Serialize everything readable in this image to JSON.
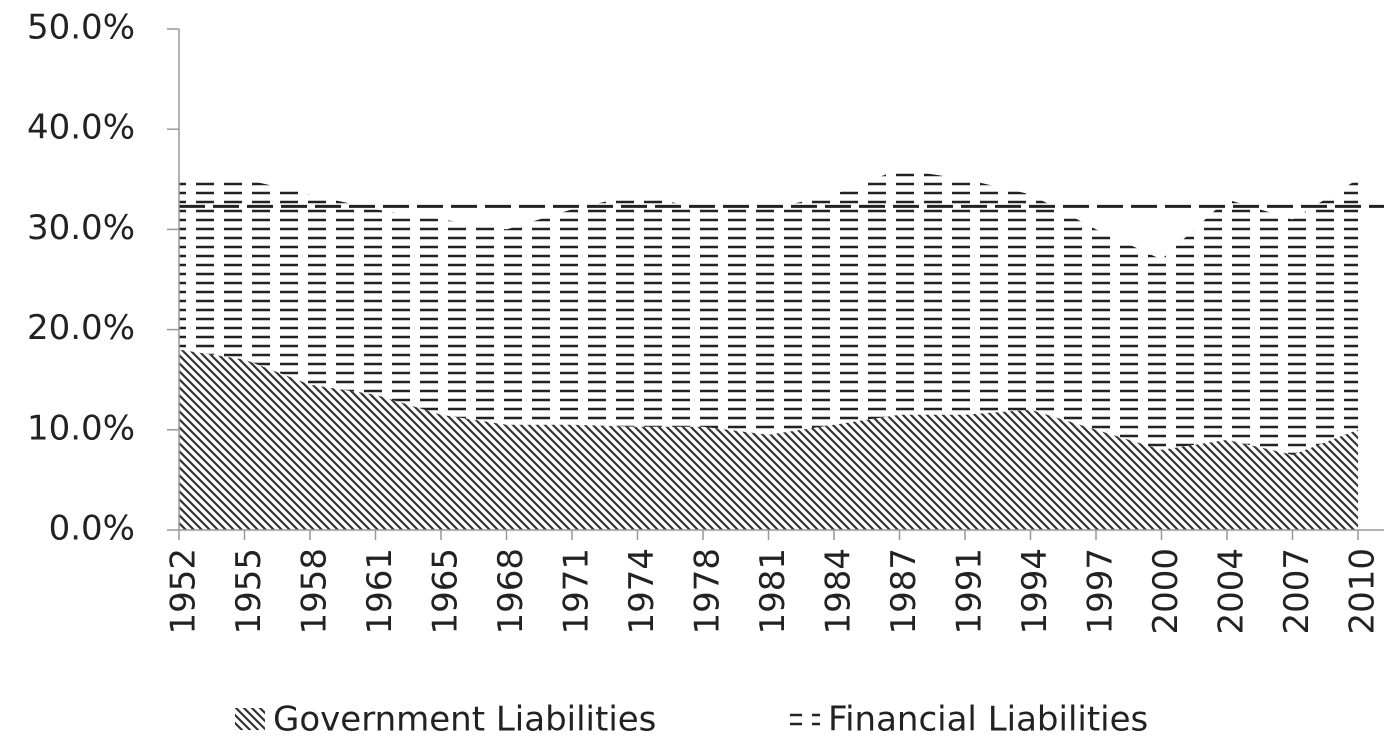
{
  "chart_data": {
    "type": "stacked_area",
    "categories": [
      "1952",
      "1955",
      "1958",
      "1961",
      "1965",
      "1968",
      "1971",
      "1974",
      "1978",
      "1981",
      "1984",
      "1987",
      "1991",
      "1994",
      "1997",
      "2000",
      "2004",
      "2007",
      "2010"
    ],
    "series": [
      {
        "name": "Government Liabilities",
        "color": "#333333",
        "pattern": "diagonal",
        "values": [
          18,
          17,
          14.5,
          13.5,
          11.5,
          10.5,
          10.5,
          10.3,
          10.3,
          9.5,
          10.5,
          11.5,
          11.5,
          12,
          10,
          8,
          9,
          7.5,
          10
        ]
      },
      {
        "name": "Financial Liabilities",
        "color": "#222222",
        "pattern": "dash",
        "values": [
          17,
          18,
          19,
          18.5,
          19.5,
          19.5,
          21.5,
          23.2,
          21.7,
          22.5,
          23,
          24.5,
          23.5,
          21.5,
          20,
          19,
          24,
          23.5,
          25
        ]
      }
    ],
    "hline": 32.3,
    "ylim": [
      0,
      50
    ],
    "yticks": [
      {
        "value": 0,
        "label": "0.0%"
      },
      {
        "value": 10,
        "label": "10.0%"
      },
      {
        "value": 20,
        "label": "20.0%"
      },
      {
        "value": 30,
        "label": "30.0%"
      },
      {
        "value": 40,
        "label": "40.0%"
      },
      {
        "value": 50,
        "label": "50.0%"
      }
    ],
    "legend": "bottom"
  }
}
